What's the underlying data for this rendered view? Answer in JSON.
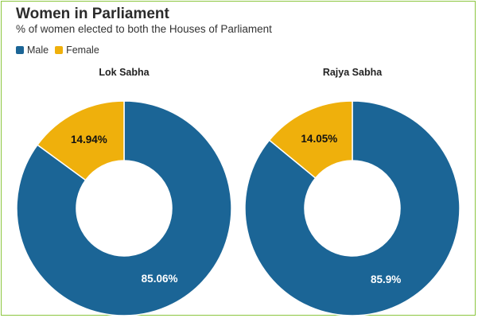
{
  "header": {
    "title": "Women in Parliament",
    "subtitle": "% of women elected to both the Houses of Parliament"
  },
  "legend": [
    {
      "label": "Male",
      "color": "#1b6596"
    },
    {
      "label": "Female",
      "color": "#efb00c"
    }
  ],
  "chart_data": [
    {
      "type": "pie",
      "variant": "donut",
      "title": "Lok Sabha",
      "series": [
        {
          "name": "Male",
          "value": 85.06,
          "label": "85.06%",
          "color": "#1b6596",
          "label_color": "#ffffff"
        },
        {
          "name": "Female",
          "value": 14.94,
          "label": "14.94%",
          "color": "#efb00c",
          "label_color": "#111111"
        }
      ]
    },
    {
      "type": "pie",
      "variant": "donut",
      "title": "Rajya Sabha",
      "series": [
        {
          "name": "Male",
          "value": 85.9,
          "label": "85.9%",
          "color": "#1b6596",
          "label_color": "#ffffff"
        },
        {
          "name": "Female",
          "value": 14.05,
          "label": "14.05%",
          "color": "#efb00c",
          "label_color": "#111111"
        }
      ]
    }
  ]
}
